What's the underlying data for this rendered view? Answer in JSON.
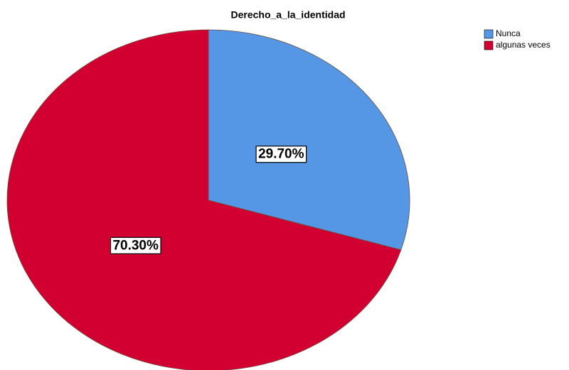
{
  "chart_data": {
    "type": "pie",
    "title": "Derecho_a_la_identidad",
    "categories": [
      "Nunca",
      "algunas veces"
    ],
    "values": [
      29.7,
      70.3
    ],
    "value_labels": [
      "29.70%",
      "70.30%"
    ],
    "colors": [
      "#5597e5",
      "#d20030"
    ],
    "legend": "top-right"
  }
}
